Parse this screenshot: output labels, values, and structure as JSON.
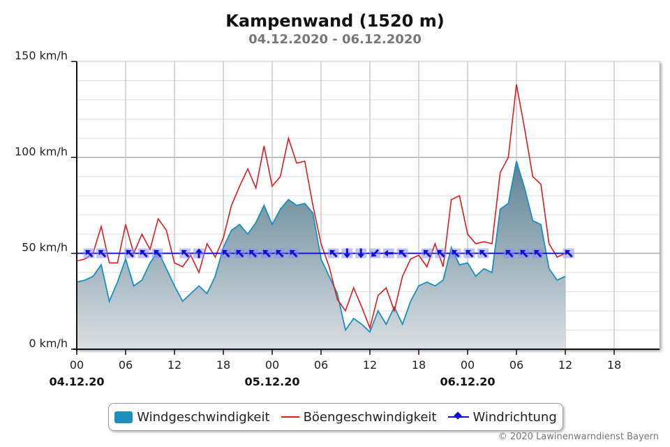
{
  "chart_data": {
    "type": "area",
    "title": "Kampenwand (1520 m)",
    "subtitle": "04.12.2020 - 06.12.2020",
    "xlabel": "",
    "ylabel": "",
    "ylim": [
      0,
      150
    ],
    "xlim_hours": [
      0,
      72
    ],
    "grid": true,
    "y_ticks": [
      "0 km/h",
      "50 km/h",
      "100 km/h",
      "150 km/h"
    ],
    "y_tick_values": [
      0,
      50,
      100,
      150
    ],
    "x_ticks": [
      "00",
      "06",
      "12",
      "18",
      "00",
      "06",
      "12",
      "18",
      "00",
      "06",
      "12",
      "18"
    ],
    "x_dates": [
      "04.12.20",
      "05.12.20",
      "06.12.20"
    ],
    "x_hours_note": "hours since 04.12.2020 00:00",
    "x": [
      0,
      1,
      2,
      3,
      4,
      5,
      6,
      7,
      8,
      9,
      10,
      11,
      12,
      13,
      14,
      15,
      16,
      17,
      18,
      19,
      20,
      21,
      22,
      23,
      24,
      25,
      26,
      27,
      28,
      29,
      30,
      31,
      32,
      33,
      34,
      35,
      36,
      37,
      38,
      39,
      40,
      41,
      42,
      43,
      44,
      45,
      46,
      47,
      48,
      49,
      50,
      51,
      52,
      53,
      54,
      55,
      56,
      57,
      58,
      59,
      60
    ],
    "series": [
      {
        "name": "Windgeschwindigkeit",
        "type": "area",
        "color": "#1a8fc0",
        "values": [
          35,
          36,
          38,
          44,
          25,
          35,
          47,
          33,
          36,
          45,
          51,
          42,
          33,
          25,
          29,
          33,
          29,
          38,
          53,
          62,
          65,
          60,
          66,
          75,
          65,
          73,
          78,
          75,
          76,
          71,
          47,
          38,
          29,
          10,
          16,
          13,
          9,
          20,
          13,
          22,
          13,
          25,
          33,
          35,
          33,
          36,
          53,
          44,
          45,
          38,
          42,
          40,
          73,
          76,
          98,
          84,
          67,
          65,
          42,
          36,
          38
        ]
      },
      {
        "name": "Böengeschwindigkeit",
        "type": "line",
        "color": "#e31a1c",
        "values": [
          46,
          47,
          50,
          64,
          45,
          45,
          65,
          50,
          60,
          52,
          68,
          62,
          45,
          43,
          49,
          40,
          55,
          48,
          58,
          75,
          85,
          94,
          84,
          106,
          85,
          90,
          110,
          97,
          98,
          75,
          55,
          43,
          26,
          20,
          32,
          22,
          11,
          28,
          32,
          20,
          38,
          47,
          49,
          43,
          55,
          43,
          78,
          80,
          60,
          55,
          56,
          55,
          92,
          100,
          138,
          115,
          90,
          86,
          55,
          48,
          50
        ]
      },
      {
        "name": "Windrichtung",
        "type": "marker",
        "color": "#1010d0",
        "level": 50,
        "times": [
          1.5,
          3.1,
          6.5,
          8.2,
          9.9,
          13.3,
          15,
          18.3,
          20,
          21.6,
          23.3,
          24.9,
          26.6,
          31.5,
          33.2,
          34.9,
          36.6,
          38.3,
          40,
          43,
          44.7,
          46.5,
          48.2,
          49.9,
          53.1,
          54.9,
          56.6,
          60.4
        ],
        "directions_deg": [
          315,
          315,
          315,
          315,
          315,
          315,
          0,
          315,
          315,
          315,
          315,
          315,
          315,
          315,
          180,
          180,
          225,
          270,
          315,
          315,
          315,
          315,
          315,
          315,
          315,
          315,
          315,
          315
        ]
      }
    ],
    "legend": [
      "Windgeschwindigkeit",
      "Böengeschwindigkeit",
      "Windrichtung"
    ],
    "legend_position": "bottom-center"
  },
  "copyright": "© 2020 Lawinenwarndienst Bayern"
}
